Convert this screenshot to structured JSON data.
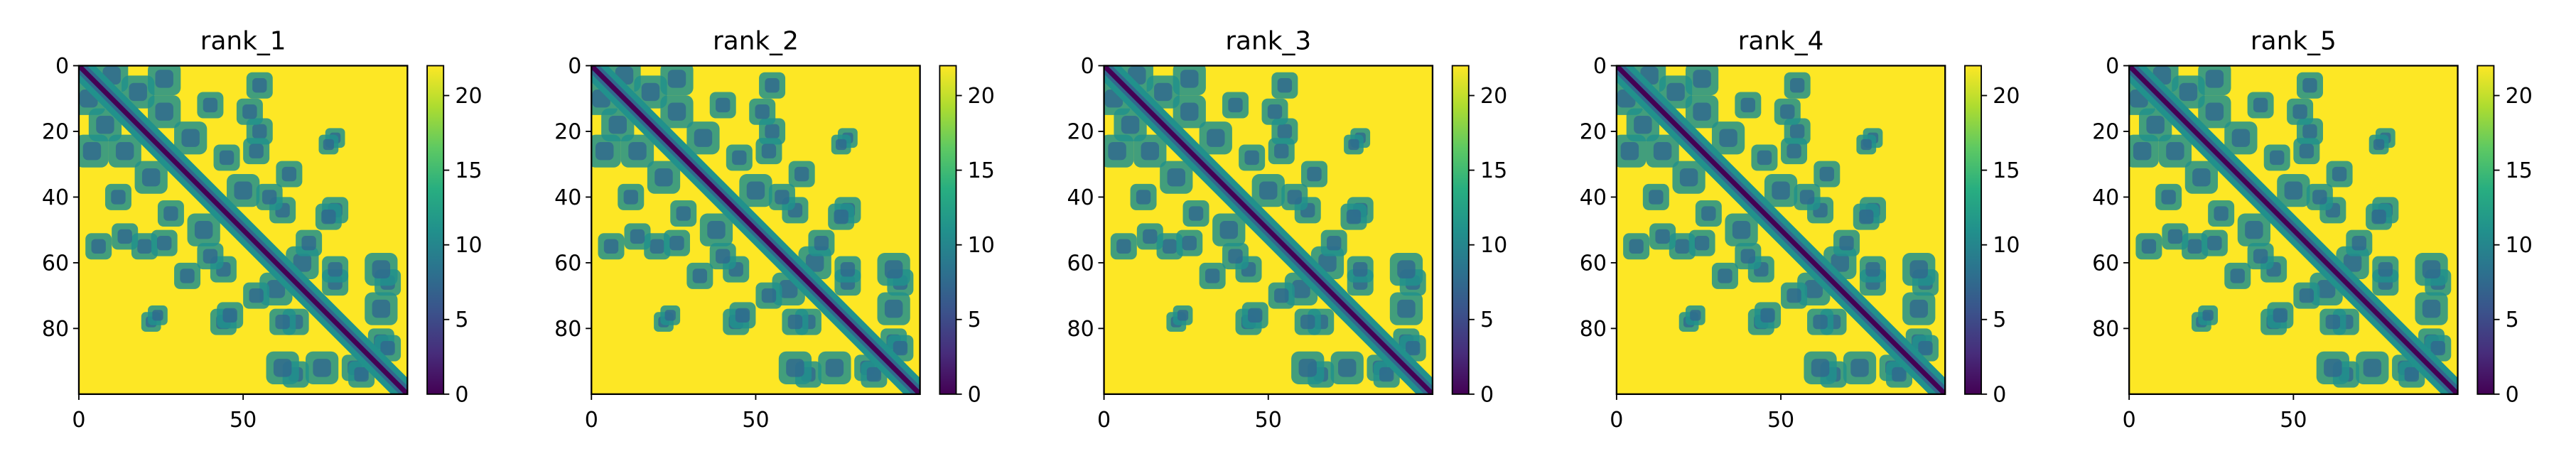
{
  "chart_data": [
    {
      "type": "heatmap",
      "title": "rank_1",
      "xticks": [
        0,
        50
      ],
      "yticks": [
        0,
        20,
        40,
        60,
        80
      ],
      "xlim": [
        0,
        100
      ],
      "ylim": [
        100,
        0
      ],
      "colorbar": {
        "min": 0,
        "max": 22,
        "ticks": [
          0,
          5,
          10,
          15,
          20
        ]
      }
    },
    {
      "type": "heatmap",
      "title": "rank_2",
      "xticks": [
        0,
        50
      ],
      "yticks": [
        0,
        20,
        40,
        60,
        80
      ],
      "xlim": [
        0,
        100
      ],
      "ylim": [
        100,
        0
      ],
      "colorbar": {
        "min": 0,
        "max": 22,
        "ticks": [
          0,
          5,
          10,
          15,
          20
        ]
      }
    },
    {
      "type": "heatmap",
      "title": "rank_3",
      "xticks": [
        0,
        50
      ],
      "yticks": [
        0,
        20,
        40,
        60,
        80
      ],
      "xlim": [
        0,
        100
      ],
      "ylim": [
        100,
        0
      ],
      "colorbar": {
        "min": 0,
        "max": 22,
        "ticks": [
          0,
          5,
          10,
          15,
          20
        ]
      }
    },
    {
      "type": "heatmap",
      "title": "rank_4",
      "xticks": [
        0,
        50
      ],
      "yticks": [
        0,
        20,
        40,
        60,
        80
      ],
      "xlim": [
        0,
        100
      ],
      "ylim": [
        100,
        0
      ],
      "colorbar": {
        "min": 0,
        "max": 22,
        "ticks": [
          0,
          5,
          10,
          15,
          20
        ]
      }
    },
    {
      "type": "heatmap",
      "title": "rank_5",
      "xticks": [
        0,
        50
      ],
      "yticks": [
        0,
        20,
        40,
        60,
        80
      ],
      "xlim": [
        0,
        100
      ],
      "ylim": [
        100,
        0
      ],
      "colorbar": {
        "min": 0,
        "max": 22,
        "ticks": [
          0,
          5,
          10,
          15,
          20
        ]
      }
    }
  ],
  "colormap": "viridis",
  "colors": {
    "background": "#fde725",
    "diagonal": "#440154",
    "contact": "#21918c",
    "contact_dark": "#31688e",
    "frame": "#000000"
  }
}
